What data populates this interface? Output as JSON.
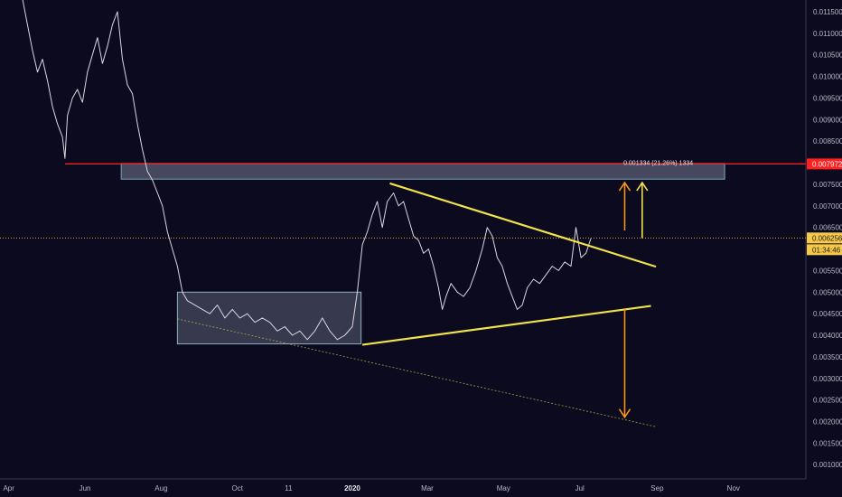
{
  "chart_data": {
    "type": "line",
    "x_axis": {
      "ticks": [
        {
          "label": "Apr",
          "date": "2019-04-01"
        },
        {
          "label": "Jun",
          "date": "2019-06-01"
        },
        {
          "label": "Aug",
          "date": "2019-08-01"
        },
        {
          "label": "Oct",
          "date": "2019-10-01"
        },
        {
          "label": "11",
          "date": "2019-11-11"
        },
        {
          "label": "2020",
          "date": "2020-01-01",
          "bold": true
        },
        {
          "label": "Mar",
          "date": "2020-03-01"
        },
        {
          "label": "May",
          "date": "2020-05-01"
        },
        {
          "label": "Jul",
          "date": "2020-07-01"
        },
        {
          "label": "Sep",
          "date": "2020-09-01"
        },
        {
          "label": "Nov",
          "date": "2020-11-01"
        }
      ],
      "range": [
        "2019-03-25",
        "2020-12-29"
      ]
    },
    "y_axis": {
      "ticks": [
        "0.001000",
        "0.001500",
        "0.002000",
        "0.002500",
        "0.003000",
        "0.003500",
        "0.004000",
        "0.004500",
        "0.005000",
        "0.005500",
        "0.006000",
        "0.006500",
        "0.007000",
        "0.007500",
        "0.008000",
        "0.008500",
        "0.009000",
        "0.009500",
        "0.010000",
        "0.010500",
        "0.011000",
        "0.011500"
      ],
      "range": [
        0.00067,
        0.011772
      ],
      "position": "right"
    },
    "series": [
      {
        "points": [
          [
            "2019-04-12",
            0.0118
          ],
          [
            "2019-04-16",
            0.0112
          ],
          [
            "2019-04-20",
            0.0106
          ],
          [
            "2019-04-24",
            0.0101
          ],
          [
            "2019-04-28",
            0.0104
          ],
          [
            "2019-05-02",
            0.0099
          ],
          [
            "2019-05-06",
            0.0093
          ],
          [
            "2019-05-10",
            0.0089
          ],
          [
            "2019-05-14",
            0.0086
          ],
          [
            "2019-05-16",
            0.0081
          ],
          [
            "2019-05-18",
            0.0091
          ],
          [
            "2019-05-22",
            0.0095
          ],
          [
            "2019-05-26",
            0.0097
          ],
          [
            "2019-05-30",
            0.0094
          ],
          [
            "2019-06-03",
            0.0101
          ],
          [
            "2019-06-07",
            0.0105
          ],
          [
            "2019-06-11",
            0.0109
          ],
          [
            "2019-06-15",
            0.0103
          ],
          [
            "2019-06-19",
            0.0107
          ],
          [
            "2019-06-23",
            0.0112
          ],
          [
            "2019-06-27",
            0.0115
          ],
          [
            "2019-07-01",
            0.0104
          ],
          [
            "2019-07-05",
            0.0098
          ],
          [
            "2019-07-09",
            0.0096
          ],
          [
            "2019-07-13",
            0.0089
          ],
          [
            "2019-07-17",
            0.0083
          ],
          [
            "2019-07-21",
            0.0078
          ],
          [
            "2019-07-25",
            0.0076
          ],
          [
            "2019-07-29",
            0.0073
          ],
          [
            "2019-08-02",
            0.007
          ],
          [
            "2019-08-06",
            0.0064
          ],
          [
            "2019-08-10",
            0.006
          ],
          [
            "2019-08-14",
            0.0056
          ],
          [
            "2019-08-18",
            0.005
          ],
          [
            "2019-08-22",
            0.0048
          ],
          [
            "2019-08-28",
            0.0047
          ],
          [
            "2019-09-03",
            0.0046
          ],
          [
            "2019-09-09",
            0.0045
          ],
          [
            "2019-09-15",
            0.0047
          ],
          [
            "2019-09-21",
            0.0044
          ],
          [
            "2019-09-27",
            0.0046
          ],
          [
            "2019-10-03",
            0.0044
          ],
          [
            "2019-10-09",
            0.0045
          ],
          [
            "2019-10-15",
            0.0043
          ],
          [
            "2019-10-21",
            0.0044
          ],
          [
            "2019-10-27",
            0.0043
          ],
          [
            "2019-11-02",
            0.0041
          ],
          [
            "2019-11-08",
            0.0042
          ],
          [
            "2019-11-14",
            0.004
          ],
          [
            "2019-11-20",
            0.0041
          ],
          [
            "2019-11-26",
            0.0039
          ],
          [
            "2019-12-02",
            0.0041
          ],
          [
            "2019-12-08",
            0.0044
          ],
          [
            "2019-12-14",
            0.0041
          ],
          [
            "2019-12-20",
            0.0039
          ],
          [
            "2019-12-26",
            0.004
          ],
          [
            "2020-01-01",
            0.0042
          ],
          [
            "2020-01-05",
            0.005
          ],
          [
            "2020-01-09",
            0.0061
          ],
          [
            "2020-01-13",
            0.0064
          ],
          [
            "2020-01-17",
            0.0068
          ],
          [
            "2020-01-21",
            0.0071
          ],
          [
            "2020-01-25",
            0.0065
          ],
          [
            "2020-01-29",
            0.0071
          ],
          [
            "2020-02-03",
            0.0073
          ],
          [
            "2020-02-07",
            0.007
          ],
          [
            "2020-02-11",
            0.0071
          ],
          [
            "2020-02-15",
            0.0067
          ],
          [
            "2020-02-19",
            0.0063
          ],
          [
            "2020-02-23",
            0.0062
          ],
          [
            "2020-02-27",
            0.0059
          ],
          [
            "2020-03-02",
            0.006
          ],
          [
            "2020-03-06",
            0.0056
          ],
          [
            "2020-03-10",
            0.0051
          ],
          [
            "2020-03-13",
            0.0046
          ],
          [
            "2020-03-16",
            0.0049
          ],
          [
            "2020-03-20",
            0.0052
          ],
          [
            "2020-03-25",
            0.005
          ],
          [
            "2020-03-30",
            0.0049
          ],
          [
            "2020-04-04",
            0.0051
          ],
          [
            "2020-04-09",
            0.0055
          ],
          [
            "2020-04-14",
            0.006
          ],
          [
            "2020-04-18",
            0.0065
          ],
          [
            "2020-04-22",
            0.0063
          ],
          [
            "2020-04-26",
            0.0058
          ],
          [
            "2020-04-30",
            0.0056
          ],
          [
            "2020-05-04",
            0.0052
          ],
          [
            "2020-05-08",
            0.0049
          ],
          [
            "2020-05-12",
            0.0046
          ],
          [
            "2020-05-16",
            0.0047
          ],
          [
            "2020-05-20",
            0.0051
          ],
          [
            "2020-05-25",
            0.0053
          ],
          [
            "2020-05-30",
            0.0052
          ],
          [
            "2020-06-04",
            0.0054
          ],
          [
            "2020-06-09",
            0.0056
          ],
          [
            "2020-06-14",
            0.0055
          ],
          [
            "2020-06-19",
            0.0057
          ],
          [
            "2020-06-24",
            0.0056
          ],
          [
            "2020-06-28",
            0.0065
          ],
          [
            "2020-07-02",
            0.0058
          ],
          [
            "2020-07-06",
            0.0059
          ],
          [
            "2020-07-10",
            0.00625
          ]
        ]
      }
    ],
    "annotations": {
      "resistance_line": {
        "value": 0.007972,
        "color": "#ff2020",
        "from_date": "2019-05-16"
      },
      "resistance_zone": {
        "low": 0.00762,
        "high": 0.00798,
        "from": "2019-06-30",
        "to": "2020-10-25"
      },
      "consolidation_box": {
        "low": 0.0038,
        "high": 0.005,
        "from": "2019-08-14",
        "to": "2020-01-08"
      },
      "upper_trendline": [
        [
          "2020-01-31",
          0.00752
        ],
        [
          "2020-08-31",
          0.00559
        ]
      ],
      "lower_trendline": [
        [
          "2020-01-09",
          0.00378
        ],
        [
          "2020-08-27",
          0.00468
        ]
      ],
      "long_support_line": [
        [
          "2019-08-14",
          0.00438
        ],
        [
          "2020-08-31",
          0.00188
        ]
      ],
      "current_price_line": {
        "value": 0.006256
      },
      "arrows": [
        {
          "color": "#f7931a",
          "date": "2020-08-06",
          "from": 0.00643,
          "to": 0.00754
        },
        {
          "color": "#f0e24a",
          "date": "2020-08-20",
          "from": 0.00625,
          "to": 0.00754
        },
        {
          "color": "#f7931a",
          "date": "2020-08-06",
          "from": 0.0046,
          "to": 0.0021
        }
      ],
      "measure_label": "0.001334 (21.26%) 1334",
      "measure_label_date": "2020-08-05",
      "measure_label_value": 0.00795
    },
    "price_badges": {
      "resistance": {
        "text": "0.007972",
        "bg": "#ff1f1f"
      },
      "current": {
        "text": "0.006256",
        "bg": "#f7c948"
      },
      "countdown": {
        "text": "01:34:46",
        "bg": "#f7c948"
      }
    }
  }
}
